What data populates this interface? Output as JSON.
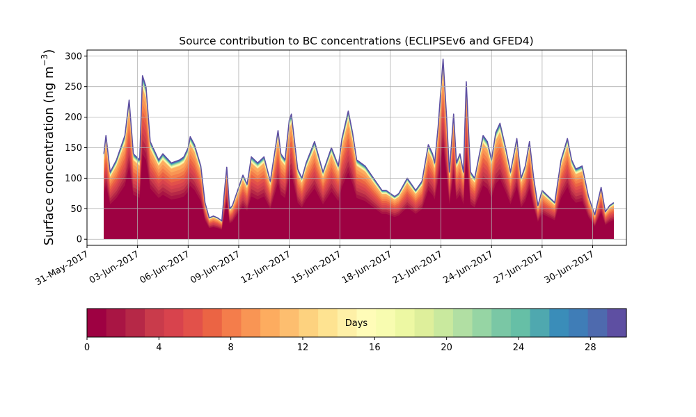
{
  "chart_data": [
    {
      "type": "area",
      "title": "Source contribution to BC concentrations (ECLIPSEv6 and GFED4)",
      "ylabel_main": "Surface concentration (ng m",
      "ylabel_exp": "−3",
      "ylabel_close": ")",
      "xlabel": "",
      "ylim": [
        -10,
        310
      ],
      "xlim": [
        "2017-05-31",
        "2017-07-02"
      ],
      "grid": true,
      "yticks": [
        0,
        50,
        100,
        150,
        200,
        250,
        300
      ],
      "xticks": [
        {
          "date": "2017-05-31",
          "label": "31-May-2017"
        },
        {
          "date": "2017-06-03",
          "label": "03-Jun-2017"
        },
        {
          "date": "2017-06-06",
          "label": "06-Jun-2017"
        },
        {
          "date": "2017-06-09",
          "label": "09-Jun-2017"
        },
        {
          "date": "2017-06-12",
          "label": "12-Jun-2017"
        },
        {
          "date": "2017-06-15",
          "label": "15-Jun-2017"
        },
        {
          "date": "2017-06-18",
          "label": "18-Jun-2017"
        },
        {
          "date": "2017-06-21",
          "label": "21-Jun-2017"
        },
        {
          "date": "2017-06-24",
          "label": "24-Jun-2017"
        },
        {
          "date": "2017-06-27",
          "label": "27-Jun-2017"
        },
        {
          "date": "2017-06-30",
          "label": "30-Jun-2017"
        }
      ],
      "series_note": "stacked contributions by source age (days); total shown, base share approximate",
      "total": {
        "x": [
          "2017-06-01 00:00",
          "2017-06-01 03:00",
          "2017-06-01 09:00",
          "2017-06-01 18:00",
          "2017-06-02 06:00",
          "2017-06-02 12:00",
          "2017-06-02 18:00",
          "2017-06-03 03:00",
          "2017-06-03 07:00",
          "2017-06-03 12:00",
          "2017-06-03 18:00",
          "2017-06-04 06:00",
          "2017-06-04 12:00",
          "2017-06-05 00:00",
          "2017-06-05 12:00",
          "2017-06-05 18:00",
          "2017-06-06 00:00",
          "2017-06-06 03:00",
          "2017-06-06 09:00",
          "2017-06-06 18:00",
          "2017-06-07 00:00",
          "2017-06-07 06:00",
          "2017-06-07 12:00",
          "2017-06-07 18:00",
          "2017-06-08 00:00",
          "2017-06-08 03:00",
          "2017-06-08 07:00",
          "2017-06-08 11:00",
          "2017-06-08 15:00",
          "2017-06-08 21:00",
          "2017-06-09 06:00",
          "2017-06-09 12:00",
          "2017-06-09 18:00",
          "2017-06-10 03:00",
          "2017-06-10 12:00",
          "2017-06-10 21:00",
          "2017-06-11 03:00",
          "2017-06-11 08:00",
          "2017-06-11 12:00",
          "2017-06-11 18:00",
          "2017-06-12 00:00",
          "2017-06-12 03:00",
          "2017-06-12 12:00",
          "2017-06-12 18:00",
          "2017-06-13 00:00",
          "2017-06-13 12:00",
          "2017-06-14 00:00",
          "2017-06-14 12:00",
          "2017-06-14 22:00",
          "2017-06-15 03:00",
          "2017-06-15 12:00",
          "2017-06-15 18:00",
          "2017-06-16 00:00",
          "2017-06-16 12:00",
          "2017-06-17 00:00",
          "2017-06-17 12:00",
          "2017-06-17 18:00",
          "2017-06-18 00:00",
          "2017-06-18 06:00",
          "2017-06-18 12:00",
          "2017-06-19 00:00",
          "2017-06-19 12:00",
          "2017-06-19 21:00",
          "2017-06-20 06:00",
          "2017-06-20 12:00",
          "2017-06-20 15:00",
          "2017-06-20 20:00",
          "2017-06-21 03:00",
          "2017-06-21 08:00",
          "2017-06-21 12:00",
          "2017-06-21 18:00",
          "2017-06-21 22:00",
          "2017-06-22 03:00",
          "2017-06-22 08:00",
          "2017-06-22 12:00",
          "2017-06-22 18:00",
          "2017-06-23 00:00",
          "2017-06-23 12:00",
          "2017-06-23 18:00",
          "2017-06-24 00:00",
          "2017-06-24 06:00",
          "2017-06-24 12:00",
          "2017-06-24 20:00",
          "2017-06-25 03:00",
          "2017-06-25 12:00",
          "2017-06-25 18:00",
          "2017-06-26 00:00",
          "2017-06-26 06:00",
          "2017-06-26 12:00",
          "2017-06-26 18:00",
          "2017-06-27 00:00",
          "2017-06-27 09:00",
          "2017-06-27 18:00",
          "2017-06-28 03:00",
          "2017-06-28 12:00",
          "2017-06-28 18:00",
          "2017-06-29 00:00",
          "2017-06-29 09:00",
          "2017-06-29 18:00",
          "2017-06-30 03:00",
          "2017-06-30 06:00",
          "2017-06-30 12:00",
          "2017-06-30 18:00",
          "2017-07-01 00:00",
          "2017-07-01 06:00"
        ],
        "values": [
          140,
          170,
          110,
          130,
          170,
          228,
          140,
          130,
          268,
          250,
          160,
          130,
          140,
          125,
          130,
          135,
          150,
          168,
          155,
          120,
          60,
          35,
          38,
          35,
          30,
          70,
          118,
          50,
          55,
          75,
          105,
          90,
          135,
          125,
          135,
          95,
          140,
          178,
          140,
          130,
          195,
          205,
          115,
          100,
          125,
          160,
          110,
          150,
          120,
          165,
          210,
          175,
          130,
          120,
          100,
          80,
          80,
          75,
          70,
          75,
          100,
          80,
          95,
          155,
          140,
          125,
          185,
          295,
          200,
          110,
          205,
          125,
          140,
          110,
          258,
          110,
          100,
          170,
          160,
          130,
          175,
          190,
          150,
          110,
          165,
          100,
          120,
          160,
          100,
          55,
          80,
          70,
          60,
          130,
          165,
          130,
          115,
          120,
          70,
          40,
          55,
          85,
          45,
          55,
          60
        ]
      },
      "colorbar": {
        "label": "Days",
        "min": 0,
        "max": 30,
        "ticks": [
          0,
          4,
          8,
          12,
          16,
          20,
          24,
          28
        ],
        "colors": [
          "#9e0142",
          "#a91544",
          "#b62847",
          "#c93b4b",
          "#d8434d",
          "#e2514a",
          "#eb6444",
          "#f47d4b",
          "#f99554",
          "#fdac5f",
          "#fdbe6f",
          "#fdd27f",
          "#fee391",
          "#fef0a7",
          "#fffcb8",
          "#f8fcb0",
          "#edf8a3",
          "#deef9b",
          "#c9e99e",
          "#b1dfa3",
          "#96d5a4",
          "#7ac7a5",
          "#66bfa6",
          "#4fa8af",
          "#3a8db9",
          "#3f7db7",
          "#4e6aae",
          "#5e4fa2"
        ]
      }
    }
  ]
}
